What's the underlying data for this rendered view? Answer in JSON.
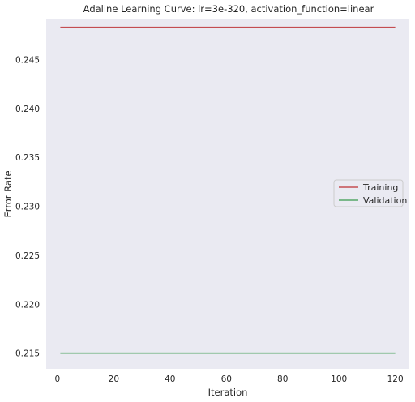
{
  "chart_data": {
    "type": "line",
    "title": "Adaline Learning Curve: lr=3e-320, activation_function=linear",
    "xlabel": "Iteration",
    "ylabel": "Error Rate",
    "xlim": [
      -4,
      125
    ],
    "ylim": [
      0.2134,
      0.2491
    ],
    "xticks": [
      0,
      20,
      40,
      60,
      80,
      100,
      120
    ],
    "yticks": [
      0.215,
      0.22,
      0.225,
      0.23,
      0.235,
      0.24,
      0.245
    ],
    "ytick_labels": [
      "0.215",
      "0.220",
      "0.225",
      "0.230",
      "0.235",
      "0.240",
      "0.245"
    ],
    "grid": false,
    "legend_position": "center-right",
    "series": [
      {
        "name": "Training",
        "color": "#c44e52",
        "x": [
          1,
          120
        ],
        "y": [
          0.2483,
          0.2483
        ]
      },
      {
        "name": "Validation",
        "color": "#55a868",
        "x": [
          1,
          120
        ],
        "y": [
          0.215,
          0.215
        ]
      }
    ],
    "colors": {
      "plot_background": "#eaeaf2",
      "legend_border": "#cccccc"
    }
  }
}
